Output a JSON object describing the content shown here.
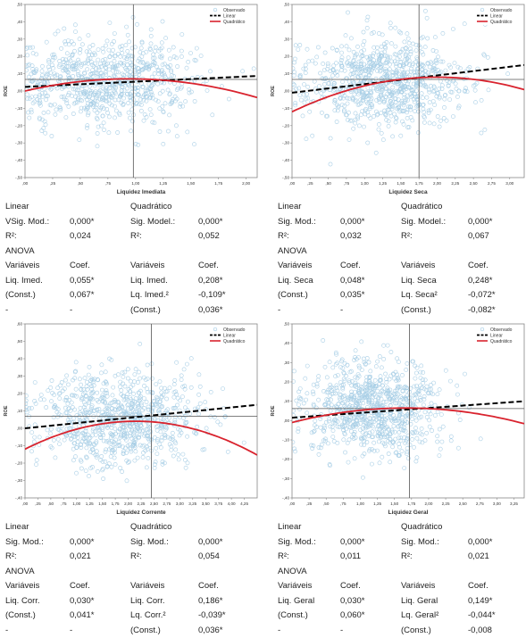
{
  "chart_data": [
    {
      "type": "scatter",
      "xlabel": "Liquidez Imediata",
      "ylabel": "ROE",
      "xlim": [
        0.0,
        2.1
      ],
      "ylim": [
        -0.5,
        0.5
      ],
      "x_ticks": [
        0.0,
        0.25,
        0.5,
        0.75,
        1.0,
        1.25,
        1.5,
        1.75,
        2.0
      ],
      "x_tick_labels": [
        ",00",
        ",25",
        ",50",
        ",75",
        "1,00",
        "1,25",
        "1,50",
        "1,75",
        "2,00"
      ],
      "y_ticks": [
        -0.5,
        -0.4,
        -0.3,
        -0.2,
        -0.1,
        0.0,
        0.1,
        0.2,
        0.3,
        0.4,
        0.5
      ],
      "y_tick_labels": [
        "-,50",
        "-,40",
        "-,30",
        "-,20",
        "-,10",
        ",00",
        ",10",
        ",20",
        ",30",
        ",40",
        ",50"
      ],
      "ref_x": 0.98,
      "ref_y": 0.067,
      "legend": [
        "Observado",
        "Linear",
        "Quadrático"
      ],
      "legend_position": "top-right",
      "linear_fit": {
        "intercept": 0.024,
        "slope": 0.03
      },
      "quadratic_fit": {
        "a": 0.0,
        "b": 0.15,
        "c": -0.08
      },
      "scatter_center": {
        "x": 0.7,
        "y": 0.06
      },
      "scatter_spread": {
        "x": 0.42,
        "y": 0.13
      },
      "scatter_count": 800,
      "scatter_seed": 11
    },
    {
      "type": "scatter",
      "xlabel": "Liquidez Seca",
      "ylabel": "ROE",
      "xlim": [
        0.0,
        3.2
      ],
      "ylim": [
        -0.5,
        0.5
      ],
      "x_ticks": [
        0.0,
        0.25,
        0.5,
        0.75,
        1.0,
        1.25,
        1.5,
        1.75,
        2.0,
        2.25,
        2.5,
        2.75,
        3.0
      ],
      "x_tick_labels": [
        ",00",
        ",25",
        ",50",
        ",75",
        "1,00",
        "1,25",
        "1,50",
        "1,75",
        "2,00",
        "2,25",
        "2,50",
        "2,75",
        "3,00"
      ],
      "y_ticks": [
        -0.5,
        -0.4,
        -0.3,
        -0.2,
        -0.1,
        0.0,
        0.1,
        0.2,
        0.3,
        0.4,
        0.5
      ],
      "y_tick_labels": [
        "-,50",
        "-,40",
        "-,30",
        "-,20",
        "-,10",
        ",00",
        ",10",
        ",20",
        ",30",
        ",40",
        ",50"
      ],
      "ref_x": 1.75,
      "ref_y": 0.067,
      "legend": [
        "Observado",
        "Linear",
        "Quadrático"
      ],
      "legend_position": "top-right",
      "linear_fit": {
        "intercept": -0.01,
        "slope": 0.05
      },
      "quadratic_fit": {
        "a": -0.12,
        "b": 0.2,
        "c": -0.05
      },
      "scatter_center": {
        "x": 1.25,
        "y": 0.05
      },
      "scatter_spread": {
        "x": 0.55,
        "y": 0.13
      },
      "scatter_count": 850,
      "scatter_seed": 23
    },
    {
      "type": "scatter",
      "xlabel": "Liquidez Corrente",
      "ylabel": "ROE",
      "xlim": [
        0.0,
        4.5
      ],
      "ylim": [
        -0.4,
        0.6
      ],
      "x_ticks": [
        0.0,
        0.25,
        0.5,
        0.75,
        1.0,
        1.25,
        1.5,
        1.75,
        2.0,
        2.25,
        2.5,
        2.75,
        3.0,
        3.25,
        3.5,
        3.75,
        4.0,
        4.25
      ],
      "x_tick_labels": [
        ",00",
        ",25",
        ",50",
        ",75",
        "1,00",
        "1,25",
        "1,50",
        "1,75",
        "2,00",
        "2,25",
        "2,50",
        "2,75",
        "3,00",
        "3,25",
        "3,50",
        "3,75",
        "4,00",
        "4,25"
      ],
      "y_ticks": [
        -0.4,
        -0.3,
        -0.2,
        -0.1,
        0.0,
        0.1,
        0.2,
        0.3,
        0.4,
        0.5,
        0.6
      ],
      "y_tick_labels": [
        "-,40",
        "-,30",
        "-,20",
        "-,10",
        ",00",
        ",10",
        ",20",
        ",30",
        ",40",
        ",50",
        ",60"
      ],
      "ref_x": 2.45,
      "ref_y": 0.07,
      "legend": [
        "Observado",
        "Linear",
        "Quadrático"
      ],
      "legend_position": "top-right",
      "linear_fit": {
        "intercept": 0.0,
        "slope": 0.03
      },
      "quadratic_fit": {
        "a": -0.12,
        "b": 0.15,
        "c": -0.035
      },
      "scatter_center": {
        "x": 1.8,
        "y": 0.06
      },
      "scatter_spread": {
        "x": 0.75,
        "y": 0.14
      },
      "scatter_count": 850,
      "scatter_seed": 37
    },
    {
      "type": "scatter",
      "xlabel": "Liquidez Geral",
      "ylabel": "ROE",
      "xlim": [
        0.0,
        3.4
      ],
      "ylim": [
        -0.4,
        0.5
      ],
      "x_ticks": [
        0.0,
        0.25,
        0.5,
        0.75,
        1.0,
        1.25,
        1.5,
        1.75,
        2.0,
        2.25,
        2.5,
        2.75,
        3.0,
        3.25
      ],
      "x_tick_labels": [
        ",00",
        ",25",
        ",50",
        ",75",
        "1,00",
        "1,25",
        "1,50",
        "1,75",
        "2,00",
        "2,25",
        "2,50",
        "2,75",
        "3,00",
        "3,25"
      ],
      "y_ticks": [
        -0.4,
        -0.3,
        -0.2,
        -0.1,
        0.0,
        0.1,
        0.2,
        0.3,
        0.4,
        0.5
      ],
      "y_tick_labels": [
        "-,40",
        "-,30",
        "-,20",
        "-,10",
        ",00",
        ",10",
        ",20",
        ",30",
        ",40",
        ",50"
      ],
      "ref_x": 1.72,
      "ref_y": 0.062,
      "legend": [
        "Observado",
        "Linear",
        "Quadrático"
      ],
      "legend_position": "top-right",
      "linear_fit": {
        "intercept": 0.015,
        "slope": 0.025
      },
      "quadratic_fit": {
        "a": -0.01,
        "b": 0.09,
        "c": -0.027
      },
      "scatter_center": {
        "x": 1.2,
        "y": 0.06
      },
      "scatter_spread": {
        "x": 0.5,
        "y": 0.12
      },
      "scatter_count": 850,
      "scatter_seed": 53
    }
  ],
  "stats": [
    {
      "linear_title": "Linear",
      "quad_title": "Quadrático",
      "sig_lin_label": "VSig. Mod.:",
      "sig_lin_value": "0,000*",
      "sig_quad_label": "Sig. Model.:",
      "sig_quad_value": "0,000*",
      "r2_lin_label": "R²:",
      "r2_lin_value": "0,024",
      "r2_quad_label": "R²:",
      "r2_quad_value": "0,052",
      "anova_title": "ANOVA",
      "var_header_1": "Variáveis",
      "coef_header_1": "Coef.",
      "var_header_2": "Variáveis",
      "coef_header_2": "Coef.",
      "rows": [
        {
          "v1": "Liq. Imed.",
          "c1": "0,055*",
          "v2": "Liq. Imed.",
          "c2": "0,208*"
        },
        {
          "v1": "(Const.)",
          "c1": "0,067*",
          "v2": "Lq. Imed.²",
          "c2": "-0,109*"
        },
        {
          "v1": "-",
          "c1": "-",
          "v2": "(Const.)",
          "c2": "0,036*"
        }
      ]
    },
    {
      "linear_title": "Linear",
      "quad_title": "Quadrático",
      "sig_lin_label": "Sig. Mod.:",
      "sig_lin_value": "0,000*",
      "sig_quad_label": "Sig. Model.:",
      "sig_quad_value": "0,000*",
      "r2_lin_label": "R²:",
      "r2_lin_value": "0,032",
      "r2_quad_label": "R²:",
      "r2_quad_value": "0,067",
      "anova_title": "ANOVA",
      "var_header_1": "Variáveis",
      "coef_header_1": "Coef.",
      "var_header_2": "Variáveis",
      "coef_header_2": "Coef.",
      "rows": [
        {
          "v1": "Liq. Seca",
          "c1": "0,048*",
          "v2": "Liq. Seca",
          "c2": "0,248*"
        },
        {
          "v1": "(Const.)",
          "c1": "0,035*",
          "v2": "Lq. Seca²",
          "c2": "-0,072*"
        },
        {
          "v1": "-",
          "c1": "-",
          "v2": "(Const.)",
          "c2": "-0,082*"
        }
      ]
    },
    {
      "linear_title": "Linear",
      "quad_title": "Quadrático",
      "sig_lin_label": "Sig. Mod.:",
      "sig_lin_value": "0,000*",
      "sig_quad_label": "Sig. Mod.:",
      "sig_quad_value": "0,000*",
      "r2_lin_label": "R²:",
      "r2_lin_value": "0,021",
      "r2_quad_label": "R²:",
      "r2_quad_value": "0,054",
      "anova_title": "ANOVA",
      "var_header_1": "Variáveis",
      "coef_header_1": "Coef.",
      "var_header_2": "Variáveis",
      "coef_header_2": "Coef.",
      "rows": [
        {
          "v1": "Liq. Corr.",
          "c1": "0,030*",
          "v2": "Liq. Corr.",
          "c2": "0,186*"
        },
        {
          "v1": "(Const.)",
          "c1": "0,041*",
          "v2": "Lq. Corr.²",
          "c2": "-0,039*"
        },
        {
          "v1": "-",
          "c1": "-",
          "v2": "(Const.)",
          "c2": "0,036*"
        }
      ]
    },
    {
      "linear_title": "Linear",
      "quad_title": "Quadrático",
      "sig_lin_label": "Sig. Mod.:",
      "sig_lin_value": "0,000*",
      "sig_quad_label": "Sig. Mod.:",
      "sig_quad_value": "0,000*",
      "r2_lin_label": "R²:",
      "r2_lin_value": "0,011",
      "r2_quad_label": "R²:",
      "r2_quad_value": "0,021",
      "anova_title": "ANOVA",
      "var_header_1": "Variáveis",
      "coef_header_1": "Coef.",
      "var_header_2": "Variáveis",
      "coef_header_2": "Coef.",
      "rows": [
        {
          "v1": "Liq. Geral",
          "c1": "0,030*",
          "v2": "Liq. Geral",
          "c2": "0,149*"
        },
        {
          "v1": "(Const.)",
          "c1": "0,060*",
          "v2": "Lq. Geral²",
          "c2": "-0,044*"
        },
        {
          "v1": "-",
          "c1": "-",
          "v2": "(Const.)",
          "c2": "-0,008"
        }
      ]
    }
  ],
  "colors": {
    "observed": "#a9cfe6",
    "linear": "#000000",
    "quadratic": "#d9232e",
    "reference": "#555555",
    "frame": "#888888"
  }
}
